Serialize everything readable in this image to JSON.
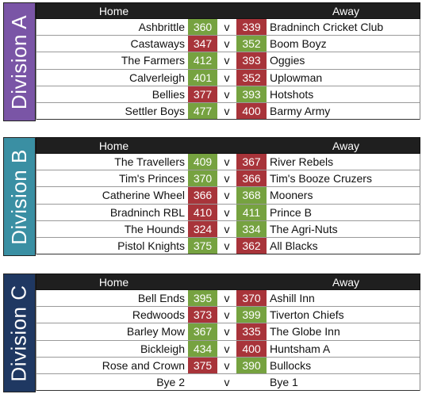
{
  "header": {
    "home": "Home",
    "away": "Away"
  },
  "divisions": [
    {
      "name": "Division A",
      "color": "#7a55a6",
      "matches": [
        {
          "home": "Ashbrittle",
          "home_score": "360",
          "vs": "v",
          "away_score": "339",
          "away": "Bradninch Cricket Club",
          "home_result": "win",
          "away_result": "lose"
        },
        {
          "home": "Castaways",
          "home_score": "347",
          "vs": "v",
          "away_score": "352",
          "away": "Boom Boyz",
          "home_result": "lose",
          "away_result": "win"
        },
        {
          "home": "The Farmers",
          "home_score": "412",
          "vs": "v",
          "away_score": "393",
          "away": "Oggies",
          "home_result": "win",
          "away_result": "lose"
        },
        {
          "home": "Calverleigh",
          "home_score": "401",
          "vs": "v",
          "away_score": "352",
          "away": "Uplowman",
          "home_result": "win",
          "away_result": "lose"
        },
        {
          "home": "Bellies",
          "home_score": "377",
          "vs": "v",
          "away_score": "393",
          "away": "Hotshots",
          "home_result": "lose",
          "away_result": "win"
        },
        {
          "home": "Settler Boys",
          "home_score": "477",
          "vs": "v",
          "away_score": "400",
          "away": "Barmy Army",
          "home_result": "win",
          "away_result": "lose"
        }
      ]
    },
    {
      "name": "Division B",
      "color": "#3a8fa3",
      "matches": [
        {
          "home": "The Travellers",
          "home_score": "409",
          "vs": "v",
          "away_score": "367",
          "away": "River Rebels",
          "home_result": "win",
          "away_result": "lose"
        },
        {
          "home": "Tim's Princes",
          "home_score": "370",
          "vs": "v",
          "away_score": "366",
          "away": "Tim's Booze Cruzers",
          "home_result": "win",
          "away_result": "lose"
        },
        {
          "home": "Catherine Wheel",
          "home_score": "366",
          "vs": "v",
          "away_score": "368",
          "away": "Mooners",
          "home_result": "lose",
          "away_result": "win"
        },
        {
          "home": "Bradninch RBL",
          "home_score": "410",
          "vs": "v",
          "away_score": "411",
          "away": "Prince B",
          "home_result": "lose",
          "away_result": "win"
        },
        {
          "home": "The Hounds",
          "home_score": "324",
          "vs": "v",
          "away_score": "334",
          "away": "The Agri-Nuts",
          "home_result": "lose",
          "away_result": "win"
        },
        {
          "home": "Pistol Knights",
          "home_score": "375",
          "vs": "v",
          "away_score": "362",
          "away": "All Blacks",
          "home_result": "win",
          "away_result": "lose"
        }
      ]
    },
    {
      "name": "Division C",
      "color": "#1f3862",
      "matches": [
        {
          "home": "Bell Ends",
          "home_score": "395",
          "vs": "v",
          "away_score": "370",
          "away": "Ashill Inn",
          "home_result": "win",
          "away_result": "lose"
        },
        {
          "home": "Redwoods",
          "home_score": "373",
          "vs": "v",
          "away_score": "399",
          "away": "Tiverton Chiefs",
          "home_result": "lose",
          "away_result": "win"
        },
        {
          "home": "Barley Mow",
          "home_score": "367",
          "vs": "v",
          "away_score": "335",
          "away": "The Globe Inn",
          "home_result": "win",
          "away_result": "lose"
        },
        {
          "home": "Bickleigh",
          "home_score": "434",
          "vs": "v",
          "away_score": "400",
          "away": "Huntsham A",
          "home_result": "win",
          "away_result": "lose"
        },
        {
          "home": "Rose and Crown",
          "home_score": "375",
          "vs": "v",
          "away_score": "390",
          "away": "Bullocks",
          "home_result": "lose",
          "away_result": "win"
        },
        {
          "home": "Bye 2",
          "home_score": "",
          "vs": "v",
          "away_score": "",
          "away": "Bye 1",
          "home_result": "none",
          "away_result": "none"
        }
      ]
    }
  ]
}
